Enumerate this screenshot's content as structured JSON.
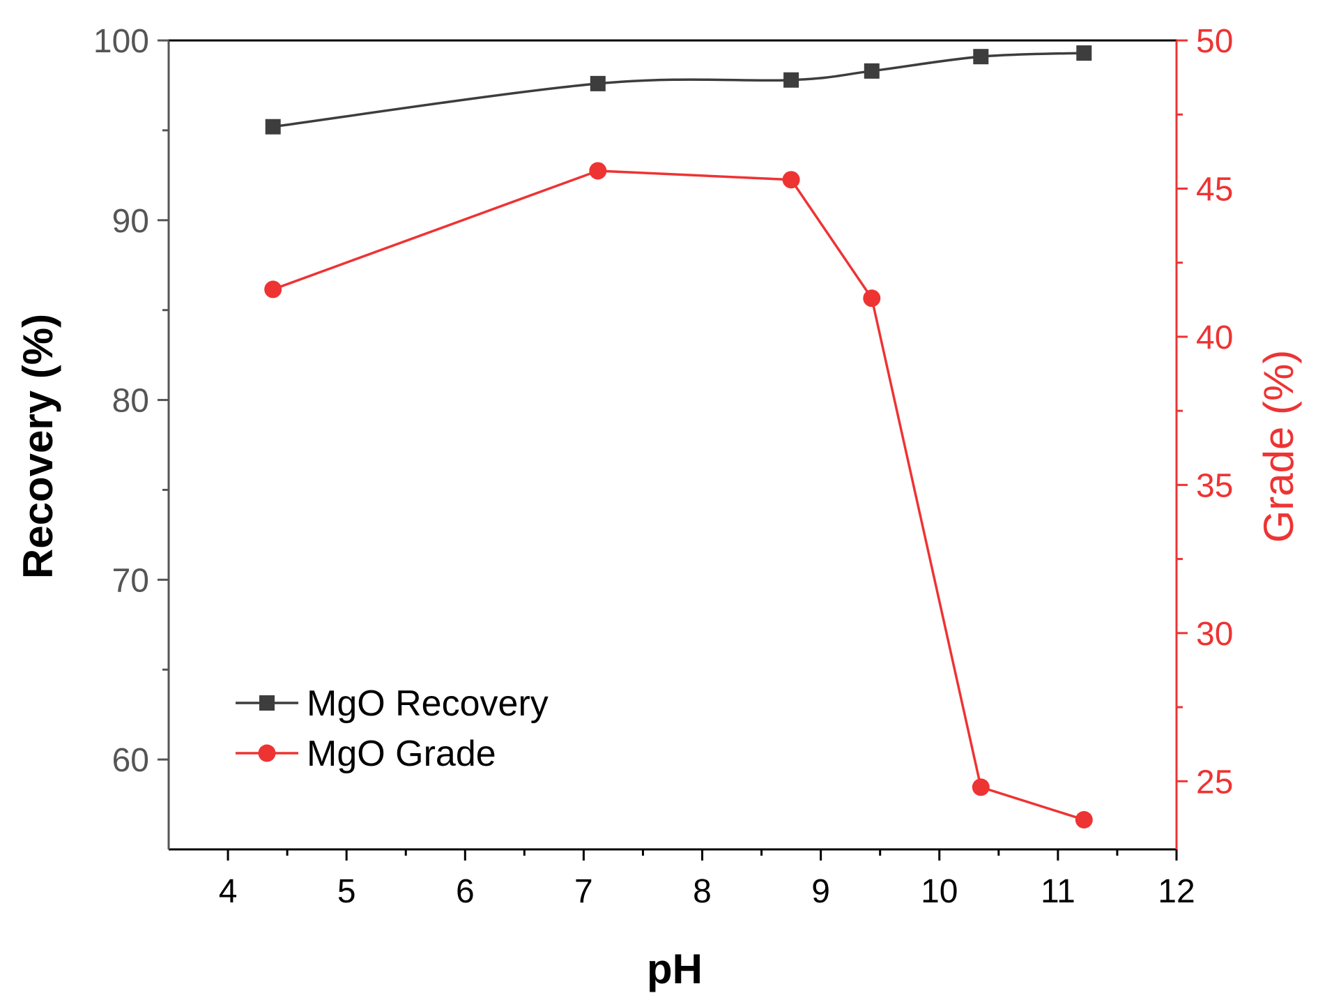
{
  "chart_data": {
    "type": "line",
    "xlabel": "pH",
    "ylabel": "Recovery (%)",
    "y2label": "Grade (%)",
    "xlim": [
      3.5,
      12
    ],
    "xticks": [
      "4",
      "5",
      "6",
      "7",
      "8",
      "9",
      "10",
      "11",
      "12"
    ],
    "ylim": [
      55,
      100
    ],
    "yticks": [
      "60",
      "70",
      "80",
      "90",
      "100"
    ],
    "y2lim": [
      22.7,
      50
    ],
    "y2ticks": [
      "25",
      "30",
      "35",
      "40",
      "45",
      "50"
    ],
    "grid": false,
    "legend_position": "bottom-left",
    "series": [
      {
        "name": "MgO Recovery",
        "axis": "left",
        "marker": "square",
        "smooth": true,
        "color": "#3d3d3d",
        "x": [
          4.38,
          7.12,
          8.75,
          9.43,
          10.35,
          11.22
        ],
        "y": [
          95.2,
          97.6,
          97.8,
          98.3,
          99.1,
          99.3
        ]
      },
      {
        "name": "MgO Grade",
        "axis": "right",
        "marker": "circle",
        "smooth": false,
        "color": "#ee3333",
        "x": [
          4.38,
          7.12,
          8.75,
          9.43,
          10.35,
          11.22
        ],
        "y": [
          41.6,
          45.6,
          45.3,
          41.3,
          24.8,
          23.7
        ]
      }
    ],
    "colors": {
      "left_axis": "#555555",
      "right_axis": "#ee3333",
      "frame": "#000000"
    }
  }
}
